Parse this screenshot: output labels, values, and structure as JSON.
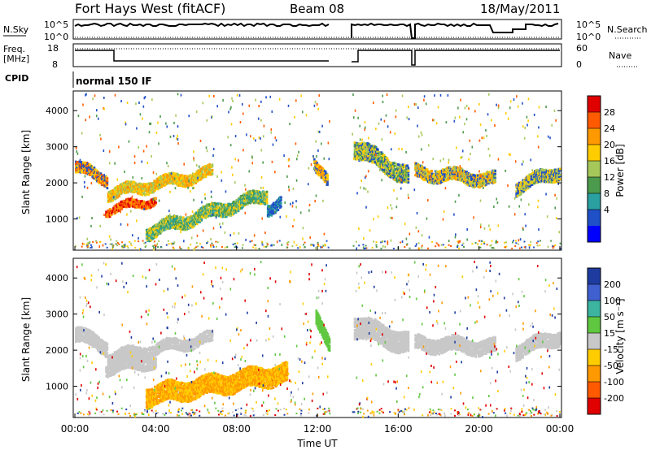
{
  "header": {
    "station": "Fort Hays West (fitACF)",
    "beam": "Beam 08",
    "date": "18/May/2011"
  },
  "panels": {
    "noise": {
      "left_label": "N.Sky",
      "right_label": "N.Search",
      "left_ticks": [
        "10^5",
        "10^0"
      ],
      "right_ticks": [
        "10^5",
        "10^0"
      ]
    },
    "freq": {
      "left_label_1": "Freq.",
      "left_label_2": "[MHz]",
      "right_label": "Nave",
      "left_ticks": [
        "18",
        "8"
      ],
      "right_ticks": [
        "60",
        "0"
      ]
    },
    "cpid": {
      "label": "CPID",
      "value": "normal 150 IF"
    }
  },
  "colorbars": {
    "power": {
      "title": "Power [dB]",
      "labels": [
        "28",
        "24",
        "20",
        "16",
        "12",
        "8",
        "4"
      ],
      "colors": [
        "#e00000",
        "#ff5a00",
        "#ff9900",
        "#ffcc00",
        "#a6c85a",
        "#4c9a4c",
        "#2aa0a0",
        "#2050c8",
        "#0000ff"
      ]
    },
    "velocity": {
      "title": "Velocity [m s⁻¹]",
      "labels": [
        "200",
        "100",
        "50",
        "15",
        "-15",
        "-50",
        "-100",
        "-200"
      ],
      "colors": [
        "#1e3ca0",
        "#4060d0",
        "#3cb4a0",
        "#60c840",
        "#c8c8c8",
        "#ffcc00",
        "#ff9900",
        "#ff5a00",
        "#e00000"
      ]
    }
  },
  "chart_data": [
    {
      "type": "heatmap",
      "name": "power",
      "ylabel": "Slant Range [km]",
      "yticks": [
        "4000",
        "3000",
        "2000",
        "1000"
      ],
      "ylim": [
        180,
        4500
      ],
      "xlim": [
        0,
        24
      ],
      "data_gaps_ut": [
        [
          12.6,
          13.7
        ],
        [
          16.55,
          16.75
        ],
        [
          21.0,
          21.2
        ]
      ],
      "bands": [
        {
          "t0": 0.0,
          "t1": 1.6,
          "r_start": 2450,
          "r_end": 2100,
          "width": 300,
          "colors": [
            "#2050c8",
            "#ffcc00",
            "#ff5a00"
          ]
        },
        {
          "t0": 1.5,
          "t1": 4.0,
          "r_start": 1250,
          "r_end": 1550,
          "width": 220,
          "colors": [
            "#ff9900",
            "#ff5a00",
            "#e00000"
          ]
        },
        {
          "t0": 1.6,
          "t1": 6.8,
          "r_start": 1700,
          "r_end": 2300,
          "width": 300,
          "colors": [
            "#a6c85a",
            "#ffcc00",
            "#ff9900"
          ]
        },
        {
          "t0": 3.5,
          "t1": 9.5,
          "r_start": 650,
          "r_end": 1700,
          "width": 380,
          "colors": [
            "#4c9a4c",
            "#a6c85a",
            "#ffcc00",
            "#2aa0a0"
          ]
        },
        {
          "t0": 9.5,
          "t1": 10.2,
          "r_start": 1300,
          "r_end": 1500,
          "width": 300,
          "colors": [
            "#2050c8",
            "#2aa0a0"
          ]
        },
        {
          "t0": 11.8,
          "t1": 12.5,
          "r_start": 2600,
          "r_end": 2000,
          "width": 300,
          "colors": [
            "#ff9900",
            "#ffcc00",
            "#2050c8"
          ]
        },
        {
          "t0": 13.8,
          "t1": 16.5,
          "r_start": 3000,
          "r_end": 2200,
          "width": 500,
          "colors": [
            "#4c9a4c",
            "#a6c85a",
            "#2050c8",
            "#ffcc00"
          ]
        },
        {
          "t0": 16.8,
          "t1": 20.8,
          "r_start": 2300,
          "r_end": 2100,
          "width": 350,
          "colors": [
            "#2050c8",
            "#a6c85a",
            "#ffcc00",
            "#ff9900"
          ]
        },
        {
          "t0": 21.8,
          "t1": 24.0,
          "r_start": 1900,
          "r_end": 2350,
          "width": 350,
          "colors": [
            "#2050c8",
            "#a6c85a",
            "#ffcc00"
          ]
        }
      ]
    },
    {
      "type": "heatmap",
      "name": "velocity",
      "ylabel": "Slant Range [km]",
      "xlabel": "Time UT",
      "yticks": [
        "4000",
        "3000",
        "2000",
        "1000"
      ],
      "xticks": [
        "00:00",
        "04:00",
        "08:00",
        "12:00",
        "16:00",
        "20:00",
        "00:00"
      ],
      "xtick_values": [
        0,
        4,
        8,
        12,
        16,
        20,
        24
      ],
      "ylim": [
        180,
        4500
      ],
      "xlim": [
        0,
        24
      ],
      "data_gaps_ut": [
        [
          12.6,
          13.7
        ],
        [
          16.55,
          16.75
        ],
        [
          21.0,
          21.2
        ]
      ],
      "bands": [
        {
          "t0": 0.0,
          "t1": 1.6,
          "r_start": 2450,
          "r_end": 2100,
          "width": 400,
          "colors": [
            "#c8c8c8"
          ]
        },
        {
          "t0": 1.5,
          "t1": 4.0,
          "r_start": 1500,
          "r_end": 1700,
          "width": 300,
          "colors": [
            "#c8c8c8"
          ]
        },
        {
          "t0": 1.6,
          "t1": 6.8,
          "r_start": 1800,
          "r_end": 2350,
          "width": 300,
          "colors": [
            "#c8c8c8"
          ]
        },
        {
          "t0": 3.5,
          "t1": 10.5,
          "r_start": 750,
          "r_end": 1400,
          "width": 550,
          "colors": [
            "#ff9900",
            "#ffcc00"
          ]
        },
        {
          "t0": 11.9,
          "t1": 12.6,
          "r_start": 3000,
          "r_end": 2000,
          "width": 400,
          "colors": [
            "#60c840"
          ]
        },
        {
          "t0": 13.8,
          "t1": 16.5,
          "r_start": 2700,
          "r_end": 2200,
          "width": 600,
          "colors": [
            "#c8c8c8"
          ]
        },
        {
          "t0": 16.8,
          "t1": 20.8,
          "r_start": 2200,
          "r_end": 2100,
          "width": 400,
          "colors": [
            "#c8c8c8"
          ]
        },
        {
          "t0": 21.8,
          "t1": 24.0,
          "r_start": 2000,
          "r_end": 2400,
          "width": 400,
          "colors": [
            "#c8c8c8"
          ]
        }
      ]
    }
  ]
}
